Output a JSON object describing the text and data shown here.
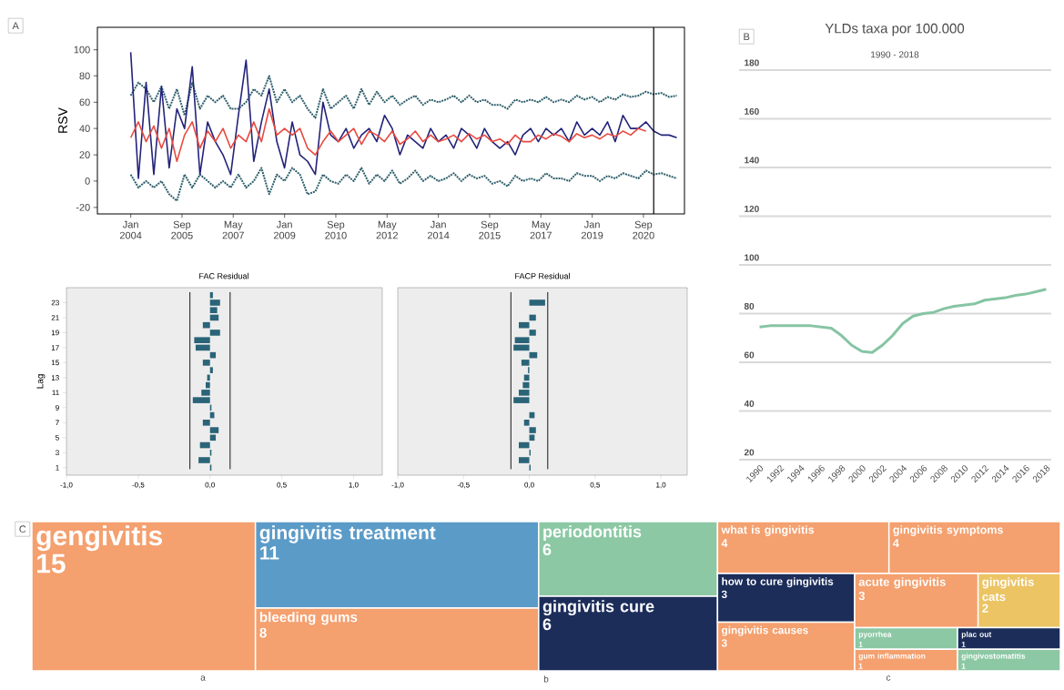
{
  "chart_data": [
    {
      "type": "line",
      "ylabel": "RSV",
      "annotations": [
        "A"
      ],
      "x": [
        "2004-01",
        "2004-04",
        "2004-07",
        "2004-10",
        "2005-01",
        "2005-04",
        "2005-07",
        "2005-10",
        "2006-01",
        "2006-04",
        "2006-07",
        "2006-10",
        "2007-01",
        "2007-04",
        "2007-07",
        "2007-10",
        "2008-01",
        "2008-04",
        "2008-07",
        "2008-10",
        "2009-01",
        "2009-04",
        "2009-07",
        "2009-10",
        "2010-01",
        "2010-04",
        "2010-07",
        "2010-10",
        "2011-01",
        "2011-04",
        "2011-07",
        "2011-10",
        "2012-01",
        "2012-04",
        "2012-07",
        "2012-10",
        "2013-01",
        "2013-04",
        "2013-07",
        "2013-10",
        "2014-01",
        "2014-04",
        "2014-07",
        "2014-10",
        "2015-01",
        "2015-04",
        "2015-07",
        "2015-10",
        "2016-01",
        "2016-04",
        "2016-07",
        "2016-10",
        "2017-01",
        "2017-04",
        "2017-07",
        "2017-10",
        "2018-01",
        "2018-04",
        "2018-07",
        "2018-10",
        "2019-01",
        "2019-04",
        "2019-07",
        "2019-10",
        "2020-01",
        "2020-04",
        "2020-07",
        "2020-10",
        "2021-01",
        "2021-04",
        "2021-07",
        "2021-10"
      ],
      "series": [
        {
          "color": "#2d5e6b",
          "line_style": "dotted",
          "values": [
            65,
            75,
            70,
            60,
            72,
            55,
            70,
            50,
            75,
            55,
            65,
            60,
            65,
            55,
            55,
            60,
            70,
            65,
            80,
            60,
            70,
            60,
            65,
            55,
            48,
            70,
            55,
            60,
            65,
            55,
            70,
            58,
            68,
            60,
            65,
            58,
            62,
            65,
            58,
            62,
            60,
            62,
            65,
            60,
            65,
            60,
            62,
            58,
            58,
            55,
            62,
            60,
            62,
            60,
            64,
            60,
            62,
            60,
            65,
            62,
            64,
            60,
            64,
            62,
            66,
            64,
            65,
            68,
            66,
            67,
            64,
            65
          ]
        },
        {
          "color": "#2d5e6b",
          "line_style": "dotted",
          "values": [
            5,
            -5,
            0,
            -5,
            0,
            -10,
            -15,
            5,
            -5,
            5,
            0,
            -5,
            0,
            -5,
            5,
            -5,
            0,
            10,
            -10,
            5,
            0,
            10,
            5,
            -10,
            -8,
            5,
            0,
            -2,
            5,
            0,
            10,
            -2,
            5,
            0,
            8,
            -2,
            2,
            8,
            0,
            4,
            0,
            2,
            6,
            0,
            5,
            2,
            4,
            -2,
            0,
            -4,
            4,
            0,
            2,
            0,
            6,
            2,
            2,
            0,
            6,
            4,
            4,
            0,
            4,
            2,
            6,
            4,
            2,
            8,
            5,
            6,
            4,
            2
          ]
        },
        {
          "color": "#23237a",
          "line_style": "solid",
          "values": [
            98,
            2,
            75,
            5,
            72,
            10,
            55,
            40,
            87,
            5,
            45,
            30,
            20,
            5,
            50,
            92,
            15,
            45,
            70,
            30,
            10,
            45,
            20,
            15,
            5,
            60,
            35,
            30,
            40,
            25,
            35,
            40,
            30,
            50,
            40,
            20,
            35,
            30,
            25,
            40,
            30,
            35,
            25,
            40,
            35,
            25,
            40,
            30,
            25,
            30,
            20,
            35,
            40,
            30,
            40,
            35,
            40,
            30,
            45,
            35,
            40,
            35,
            45,
            30,
            50,
            40,
            40,
            45,
            38,
            35,
            35,
            33
          ]
        },
        {
          "color": "#e84a3f",
          "line_style": "solid",
          "values": [
            33,
            45,
            30,
            42,
            25,
            40,
            15,
            35,
            45,
            25,
            38,
            30,
            40,
            25,
            35,
            30,
            45,
            30,
            55,
            35,
            40,
            35,
            40,
            25,
            20,
            30,
            38,
            30,
            35,
            40,
            28,
            38,
            35,
            30,
            38,
            28,
            32,
            38,
            30,
            35,
            30,
            32,
            35,
            30,
            36,
            32,
            35,
            30,
            32,
            28,
            35,
            30,
            30,
            35,
            32,
            36,
            34,
            30,
            36,
            33,
            35,
            32,
            36,
            34,
            38,
            35,
            40,
            38,
            null,
            null,
            null,
            null
          ]
        }
      ],
      "xlim": [
        "2002-12",
        "2022-01"
      ],
      "ylim": [
        -25,
        117
      ],
      "xticks": [
        {
          "value": "2004-01",
          "label": "Jan 2004"
        },
        {
          "value": "2005-09",
          "label": "Sep 2005"
        },
        {
          "value": "2007-05",
          "label": "May 2007"
        },
        {
          "value": "2009-01",
          "label": "Jan 2009"
        },
        {
          "value": "2010-09",
          "label": "Sep 2010"
        },
        {
          "value": "2012-05",
          "label": "May 2012"
        },
        {
          "value": "2014-01",
          "label": "Jan 2014"
        },
        {
          "value": "2015-09",
          "label": "Sep 2015"
        },
        {
          "value": "2017-05",
          "label": "May 2017"
        },
        {
          "value": "2019-01",
          "label": "Jan 2019"
        },
        {
          "value": "2020-09",
          "label": "Sep 2020"
        }
      ],
      "yticks": [
        -20,
        0,
        20,
        40,
        60,
        80,
        100
      ],
      "ref_lines": [
        {
          "axis": "x",
          "value": "2021-01",
          "color": "#000000"
        }
      ]
    },
    {
      "type": "bar",
      "orientation": "horizontal",
      "title": "FAC Residual",
      "ylabel": "Lag",
      "color": "#2a6478",
      "categories": [
        null,
        "23",
        null,
        "21",
        null,
        "19",
        null,
        "17",
        null,
        "15",
        null,
        "13",
        null,
        "11",
        null,
        "9",
        null,
        "7",
        null,
        "5",
        null,
        "3",
        null,
        "1"
      ],
      "values": [
        0.02,
        0.07,
        0.05,
        0.06,
        -0.05,
        0.07,
        -0.11,
        -0.1,
        0.04,
        -0.05,
        0.02,
        -0.02,
        -0.03,
        -0.06,
        -0.12,
        0.01,
        0.03,
        -0.05,
        0.06,
        0.04,
        -0.07,
        0.01,
        -0.08,
        0.01
      ],
      "xlim": [
        -1,
        1.2
      ],
      "xticks": [
        {
          "value": -1,
          "label": "-1,0"
        },
        {
          "value": -0.5,
          "label": "-0,5"
        },
        {
          "value": 0,
          "label": "0,0"
        },
        {
          "value": 0.5,
          "label": "0,5"
        },
        {
          "value": 1,
          "label": "1,0"
        }
      ],
      "ref_lines": [
        {
          "axis": "x",
          "value": -0.14,
          "color": "#000000"
        },
        {
          "axis": "x",
          "value": 0.14,
          "color": "#000000"
        }
      ]
    },
    {
      "type": "bar",
      "orientation": "horizontal",
      "title": "FACP Residual",
      "color": "#2a6478",
      "tick_labels": "x",
      "categories": [
        null,
        "23",
        null,
        "21",
        null,
        "19",
        null,
        "17",
        null,
        "15",
        null,
        "13",
        null,
        "11",
        null,
        "9",
        null,
        "7",
        null,
        "5",
        null,
        "3",
        null,
        "1"
      ],
      "values": [
        0.0,
        0.12,
        0.0,
        0.05,
        -0.08,
        0.05,
        -0.11,
        -0.12,
        0.06,
        -0.06,
        -0.01,
        -0.04,
        -0.05,
        -0.08,
        -0.12,
        0.0,
        0.04,
        -0.04,
        0.05,
        0.04,
        -0.08,
        0.01,
        -0.08,
        0.01
      ],
      "xlim": [
        -1,
        1.2
      ],
      "xticks": [
        {
          "value": -1,
          "label": "-1,0"
        },
        {
          "value": -0.5,
          "label": "-0,5"
        },
        {
          "value": 0,
          "label": "0,0"
        },
        {
          "value": 0.5,
          "label": "0,5"
        },
        {
          "value": 1,
          "label": "1,0"
        }
      ],
      "ref_lines": [
        {
          "axis": "x",
          "value": -0.14,
          "color": "#000000"
        },
        {
          "axis": "x",
          "value": 0.14,
          "color": "#000000"
        }
      ]
    },
    {
      "type": "line",
      "title": "YLDs taxa por 100.000",
      "subtitle": "1990 - 2018",
      "annotations": [
        "B"
      ],
      "grid": "y",
      "x": [
        1990,
        1991,
        1992,
        1993,
        1994,
        1995,
        1996,
        1997,
        1998,
        1999,
        2000,
        2001,
        2002,
        2003,
        2004,
        2005,
        2006,
        2007,
        2008,
        2009,
        2010,
        2011,
        2012,
        2013,
        2014,
        2015,
        2016,
        2017,
        2018
      ],
      "series": [
        {
          "color": "#86c4a4",
          "line_style": "solid",
          "values": [
            74.5,
            75,
            75,
            75,
            75,
            75,
            74.5,
            74,
            71,
            67,
            64.5,
            64,
            67,
            71,
            76,
            79,
            80,
            80.5,
            82,
            83,
            83.5,
            84,
            85.5,
            86,
            86.5,
            87.5,
            88,
            89,
            90
          ]
        }
      ],
      "xlim": [
        1988,
        2018.5
      ],
      "ylim": [
        20,
        180
      ],
      "xticks": [
        1990,
        1992,
        1994,
        1996,
        1998,
        2000,
        2002,
        2004,
        2006,
        2008,
        2010,
        2012,
        2014,
        2016,
        2018
      ],
      "yticks": [
        20,
        40,
        60,
        80,
        100,
        120,
        140,
        160,
        180
      ]
    },
    {
      "type": "other",
      "annotations": [
        "C",
        "a",
        "b",
        "c"
      ],
      "data_labels": true,
      "categories": [
        "gengivitis",
        "gingivitis treatment",
        "bleeding gums",
        "periodontitis",
        "gingivitis cure",
        "what is gingivitis",
        "gingivitis symptoms",
        "how to cure gingivitis",
        "gingivitis causes",
        "acute gingivitis",
        "gingivitis cats",
        "pyorrhea",
        "gum inflammation",
        "plac out",
        "gingivostomatitis"
      ],
      "values": [
        15,
        11,
        8,
        6,
        6,
        4,
        4,
        3,
        3,
        3,
        2,
        1,
        1,
        1,
        1
      ],
      "colors": [
        "#f4a06f",
        "#5b9bc8",
        "#f4a06f",
        "#8cc8a4",
        "#1c2d5a",
        "#f4a06f",
        "#f4a06f",
        "#1c2d5a",
        "#f4a06f",
        "#f4a06f",
        "#ecc464",
        "#8cc8a4",
        "#f4a06f",
        "#1c2d5a",
        "#8cc8a4"
      ]
    }
  ]
}
